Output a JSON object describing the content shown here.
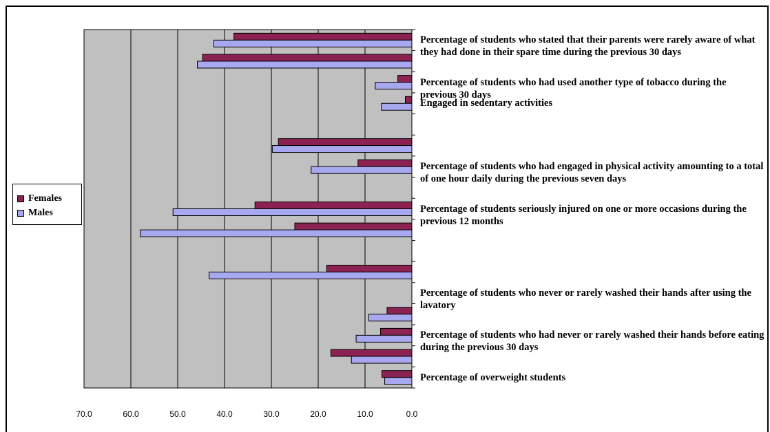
{
  "colors": {
    "females": "#8B2252",
    "males": "#A8A8F0",
    "plot_bg": "#C0C0C0",
    "gridline": "#000000"
  },
  "legend": {
    "females": "Females",
    "males": "Males",
    "placement": "left"
  },
  "chart_data": {
    "type": "bar",
    "orientation": "horizontal",
    "x_reversed": true,
    "xlim": [
      0,
      70
    ],
    "xticks": [
      "70.0",
      "60.0",
      "50.0",
      "40.0",
      "30.0",
      "20.0",
      "10.0",
      "0.0"
    ],
    "grid": "vertical",
    "title": "",
    "xlabel": "",
    "ylabel": "",
    "categories": [
      "Percentage of students who stated that their parents were rarely aware of what they had done in their spare time during the previous 30 days",
      "",
      "Percentage of students who had used another type of tobacco during the previous 30 days",
      "Engaged in sedentary activities",
      "",
      "",
      "Percentage of students who had engaged in physical activity amounting to a total of one hour daily during the previous seven days",
      "",
      "Percentage of students seriously injured on one or more occasions during the previous 12 months",
      "",
      "",
      "",
      "Percentage of students who never or rarely washed their hands after using the lavatory",
      "",
      "Percentage of students who had never or rarely washed their hands before eating during the previous 30 days",
      "",
      "Percentage of overweight students"
    ],
    "series": [
      {
        "name": "Females",
        "values": [
          38.0,
          44.7,
          3.0,
          1.4,
          null,
          28.5,
          11.5,
          null,
          33.5,
          25.0,
          null,
          18.2,
          null,
          5.3,
          6.7,
          17.3,
          6.4
        ]
      },
      {
        "name": "Males",
        "values": [
          42.3,
          45.8,
          7.8,
          6.5,
          null,
          29.8,
          21.5,
          null,
          51.0,
          58.0,
          null,
          43.3,
          null,
          9.2,
          11.9,
          12.9,
          5.8
        ]
      }
    ]
  }
}
